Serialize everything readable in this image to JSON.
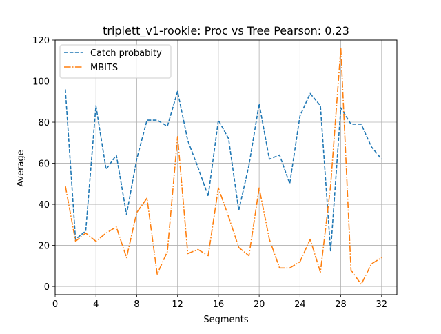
{
  "chart_data": {
    "type": "line",
    "title": "triplett_v1-rookie: Proc vs Tree Pearson: 0.23",
    "xlabel": "Segments",
    "ylabel": "Average",
    "xlim": [
      0,
      33.5
    ],
    "ylim": [
      -4,
      120
    ],
    "xticks": [
      0,
      4,
      8,
      12,
      16,
      20,
      24,
      28,
      32
    ],
    "yticks": [
      0,
      20,
      40,
      60,
      80,
      100,
      120
    ],
    "grid": true,
    "legend_position": "top-left",
    "x": [
      1,
      2,
      3,
      4,
      5,
      6,
      7,
      8,
      9,
      10,
      11,
      12,
      13,
      14,
      15,
      16,
      17,
      18,
      19,
      20,
      21,
      22,
      23,
      24,
      25,
      26,
      27,
      28,
      29,
      30,
      31,
      32
    ],
    "series": [
      {
        "name": "Catch probabity",
        "color": "#1f77b4",
        "dash": "dashed",
        "values": [
          96,
          23,
          27,
          88,
          57,
          64,
          35,
          62,
          81,
          81,
          78,
          95,
          71,
          58,
          44,
          81,
          72,
          37,
          59,
          89,
          62,
          64,
          50,
          83,
          94,
          88,
          17,
          87,
          79,
          79,
          68,
          62
        ]
      },
      {
        "name": "MBITS",
        "color": "#ff7f0e",
        "dash": "dashdot",
        "values": [
          49,
          22,
          26,
          22,
          26,
          29,
          14,
          36,
          43,
          6,
          17,
          73,
          16,
          18,
          15,
          48,
          34,
          19,
          15,
          48,
          23,
          9,
          9,
          12,
          23,
          7,
          49,
          116,
          8,
          1,
          11,
          14
        ]
      }
    ]
  }
}
